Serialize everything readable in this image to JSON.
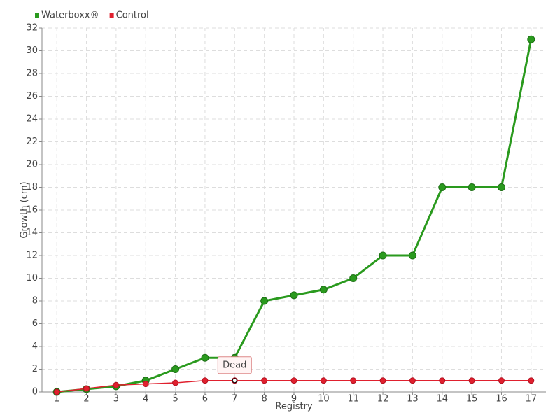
{
  "chart_data": {
    "type": "line",
    "x_label": "Registry",
    "y_label": "Growth (cm)",
    "x": [
      1,
      2,
      3,
      4,
      5,
      6,
      7,
      8,
      9,
      10,
      11,
      12,
      13,
      14,
      15,
      16,
      17
    ],
    "series": [
      {
        "name": "Waterboxx®",
        "color": "#2a9a1e",
        "values": [
          0,
          0.25,
          0.5,
          1,
          2,
          3,
          3,
          8,
          8.5,
          9,
          10,
          12,
          12,
          18,
          18,
          18,
          31
        ]
      },
      {
        "name": "Control",
        "color": "#e0202e",
        "values": [
          0,
          0.3,
          0.6,
          0.7,
          0.8,
          1,
          1,
          1,
          1,
          1,
          1,
          1,
          1,
          1,
          1,
          1,
          1
        ]
      }
    ],
    "xlim": [
      0.5,
      17.5
    ],
    "xticks": [
      1,
      2,
      3,
      4,
      5,
      6,
      7,
      8,
      9,
      10,
      11,
      12,
      13,
      14,
      15,
      16,
      17
    ],
    "ylim": [
      0,
      32
    ],
    "yticks": [
      0,
      2,
      4,
      6,
      8,
      10,
      12,
      14,
      16,
      18,
      20,
      22,
      24,
      26,
      28,
      30,
      32
    ],
    "grid": true,
    "legend": "top-left",
    "annotations": [
      {
        "text": "Dead",
        "x": 7,
        "y": 1
      }
    ]
  }
}
